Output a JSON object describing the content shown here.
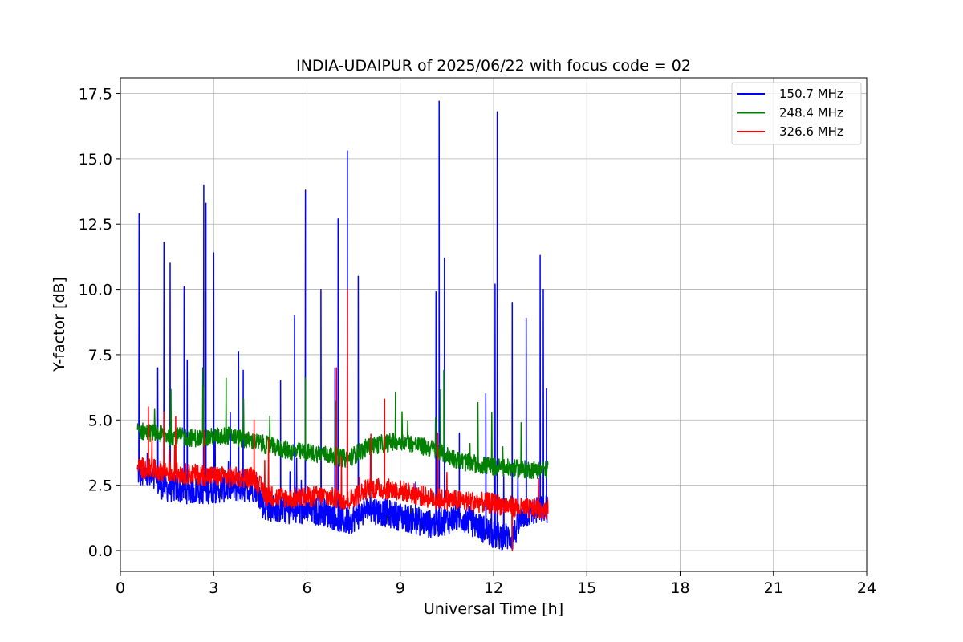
{
  "chart_data": {
    "type": "line",
    "title": "INDIA-UDAIPUR of 2025/06/22 with focus code = 02",
    "xlabel": "Universal Time [h]",
    "ylabel": "Y-factor [dB]",
    "xlim": [
      0,
      24
    ],
    "ylim": [
      -0.8,
      18.1
    ],
    "xticks": [
      0,
      3,
      6,
      9,
      12,
      15,
      18,
      21,
      24
    ],
    "xtick_labels": [
      "0",
      "3",
      "6",
      "9",
      "12",
      "15",
      "18",
      "21",
      "24"
    ],
    "yticks": [
      0.0,
      2.5,
      5.0,
      7.5,
      10.0,
      12.5,
      15.0,
      17.5
    ],
    "ytick_labels": [
      "0.0",
      "2.5",
      "5.0",
      "7.5",
      "10.0",
      "12.5",
      "15.0",
      "17.5"
    ],
    "grid": true,
    "legend_position": "top-right",
    "data_range_hours": [
      0.55,
      13.75
    ],
    "series": [
      {
        "name": "150.7 MHz",
        "color": "#0000ff",
        "x": [
          0.55,
          1.5,
          2.5,
          3.5,
          4.4,
          4.6,
          5.5,
          6.5,
          7.3,
          8.0,
          9.0,
          10.0,
          11.0,
          12.0,
          12.6,
          13.0,
          13.75
        ],
        "y": [
          3.0,
          2.4,
          2.3,
          2.4,
          2.4,
          1.7,
          1.5,
          1.5,
          1.1,
          1.6,
          1.3,
          1.0,
          1.3,
          0.6,
          0.5,
          1.4,
          1.6
        ],
        "spikes": [
          {
            "x": 0.6,
            "y": 12.9
          },
          {
            "x": 1.2,
            "y": 7.0
          },
          {
            "x": 1.4,
            "y": 11.8
          },
          {
            "x": 1.6,
            "y": 11.0
          },
          {
            "x": 2.05,
            "y": 10.1
          },
          {
            "x": 2.15,
            "y": 7.3
          },
          {
            "x": 2.68,
            "y": 14.0
          },
          {
            "x": 2.75,
            "y": 13.3
          },
          {
            "x": 3.0,
            "y": 11.4
          },
          {
            "x": 3.8,
            "y": 7.6
          },
          {
            "x": 3.95,
            "y": 6.9
          },
          {
            "x": 5.15,
            "y": 6.5
          },
          {
            "x": 5.6,
            "y": 9.0
          },
          {
            "x": 5.95,
            "y": 13.8
          },
          {
            "x": 6.45,
            "y": 10.0
          },
          {
            "x": 6.9,
            "y": 7.0
          },
          {
            "x": 7.0,
            "y": 12.7
          },
          {
            "x": 7.3,
            "y": 15.3
          },
          {
            "x": 7.65,
            "y": 10.5
          },
          {
            "x": 10.15,
            "y": 9.9
          },
          {
            "x": 10.25,
            "y": 17.2
          },
          {
            "x": 10.42,
            "y": 11.2
          },
          {
            "x": 10.9,
            "y": 4.5
          },
          {
            "x": 11.75,
            "y": 6.0
          },
          {
            "x": 12.05,
            "y": 10.2
          },
          {
            "x": 12.12,
            "y": 16.8
          },
          {
            "x": 12.6,
            "y": 9.5
          },
          {
            "x": 13.05,
            "y": 8.9
          },
          {
            "x": 13.5,
            "y": 11.3
          },
          {
            "x": 13.6,
            "y": 10.0
          },
          {
            "x": 13.7,
            "y": 6.2
          }
        ]
      },
      {
        "name": "248.4 MHz",
        "color": "#008000",
        "x": [
          0.55,
          1.5,
          2.5,
          3.5,
          4.5,
          5.5,
          6.5,
          7.3,
          8.0,
          9.0,
          10.0,
          11.0,
          12.0,
          13.0,
          13.75
        ],
        "y": [
          4.6,
          4.4,
          4.3,
          4.4,
          4.1,
          3.8,
          3.7,
          3.5,
          4.0,
          4.2,
          3.9,
          3.4,
          3.2,
          3.1,
          3.1
        ],
        "spikes": [
          {
            "x": 2.65,
            "y": 7.0
          },
          {
            "x": 3.4,
            "y": 6.6
          },
          {
            "x": 5.95,
            "y": 6.6
          },
          {
            "x": 10.4,
            "y": 6.9
          },
          {
            "x": 7.3,
            "y": 5.6
          }
        ]
      },
      {
        "name": "326.6 MHz",
        "color": "#ff0000",
        "x": [
          0.55,
          1.5,
          2.5,
          3.5,
          4.3,
          4.7,
          5.5,
          6.5,
          7.3,
          8.0,
          9.0,
          10.0,
          11.0,
          12.0,
          13.0,
          13.75
        ],
        "y": [
          3.2,
          3.0,
          2.9,
          2.8,
          2.8,
          2.1,
          2.0,
          2.1,
          1.9,
          2.4,
          2.3,
          2.0,
          1.9,
          1.8,
          1.6,
          1.6
        ],
        "spikes": [
          {
            "x": 0.9,
            "y": 5.5
          },
          {
            "x": 1.4,
            "y": 5.3
          },
          {
            "x": 2.7,
            "y": 4.6
          },
          {
            "x": 4.3,
            "y": 5.0
          },
          {
            "x": 6.95,
            "y": 7.0
          },
          {
            "x": 7.3,
            "y": 10.0
          },
          {
            "x": 8.5,
            "y": 5.8
          },
          {
            "x": 10.2,
            "y": 4.5
          },
          {
            "x": 12.6,
            "y": 0.0
          }
        ]
      }
    ]
  }
}
